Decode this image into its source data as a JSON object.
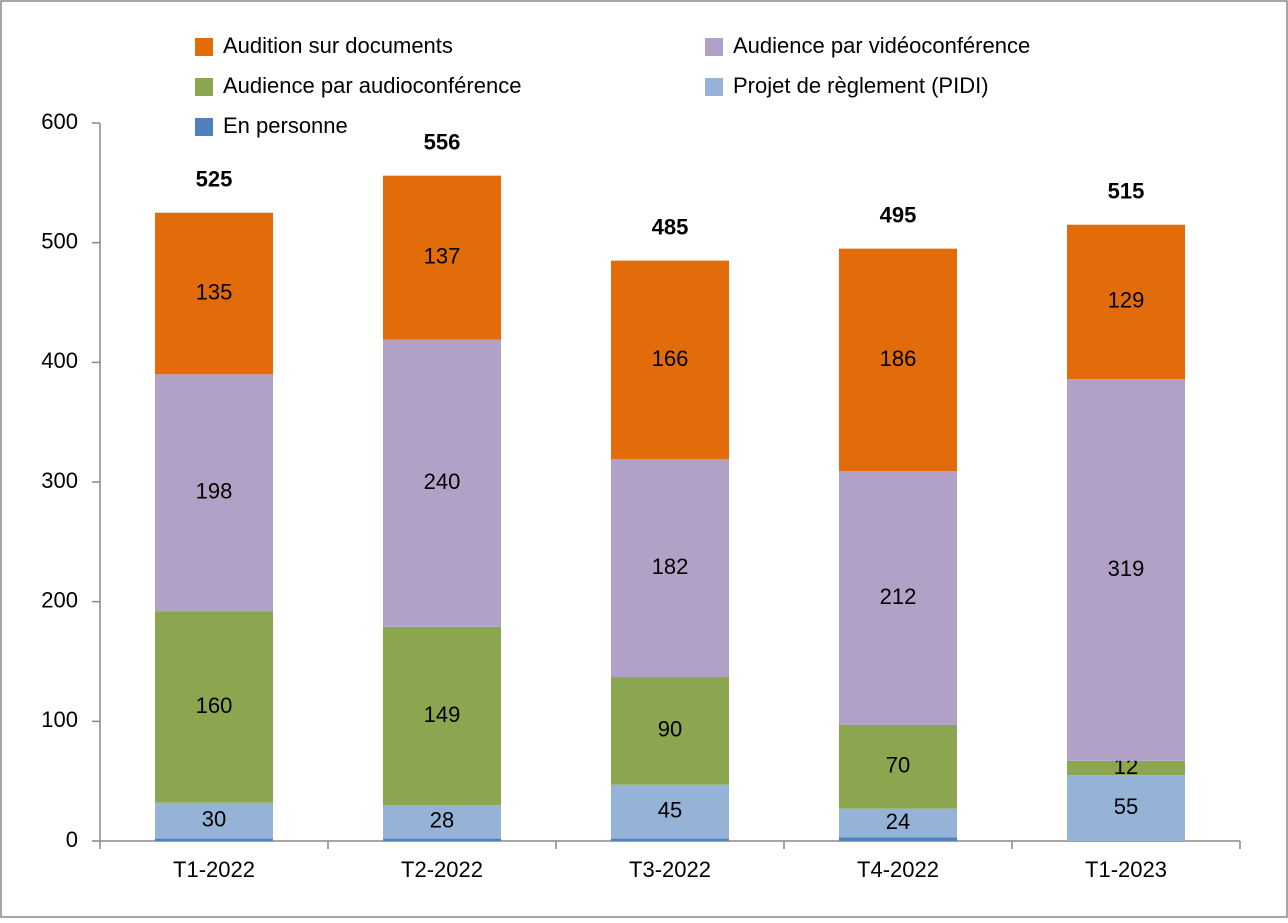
{
  "chart_data": {
    "type": "stacked_bar",
    "categories": [
      "T1-2022",
      "T2-2022",
      "T3-2022",
      "T4-2022",
      "T1-2023"
    ],
    "series": [
      {
        "name": "En personne",
        "color": "#4f81bd",
        "values": [
          2,
          2,
          2,
          3,
          0
        ],
        "data_labels": false
      },
      {
        "name": "Projet de règlement (PIDI)",
        "color": "#95b3d7",
        "values": [
          30,
          28,
          45,
          24,
          55
        ]
      },
      {
        "name": "Audience par audioconférence",
        "color": "#8ba64e",
        "values": [
          160,
          149,
          90,
          70,
          12
        ]
      },
      {
        "name": "Audience par vidéoconférence",
        "color": "#b2a1c7",
        "values": [
          198,
          240,
          182,
          212,
          319
        ]
      },
      {
        "name": "Audition sur documents",
        "color": "#e36c0a",
        "values": [
          135,
          137,
          166,
          186,
          129
        ]
      }
    ],
    "totals": [
      525,
      556,
      485,
      495,
      515
    ],
    "ylim": [
      0,
      600
    ],
    "yticks": [
      0,
      100,
      200,
      300,
      400,
      500,
      600
    ],
    "grid": false
  }
}
